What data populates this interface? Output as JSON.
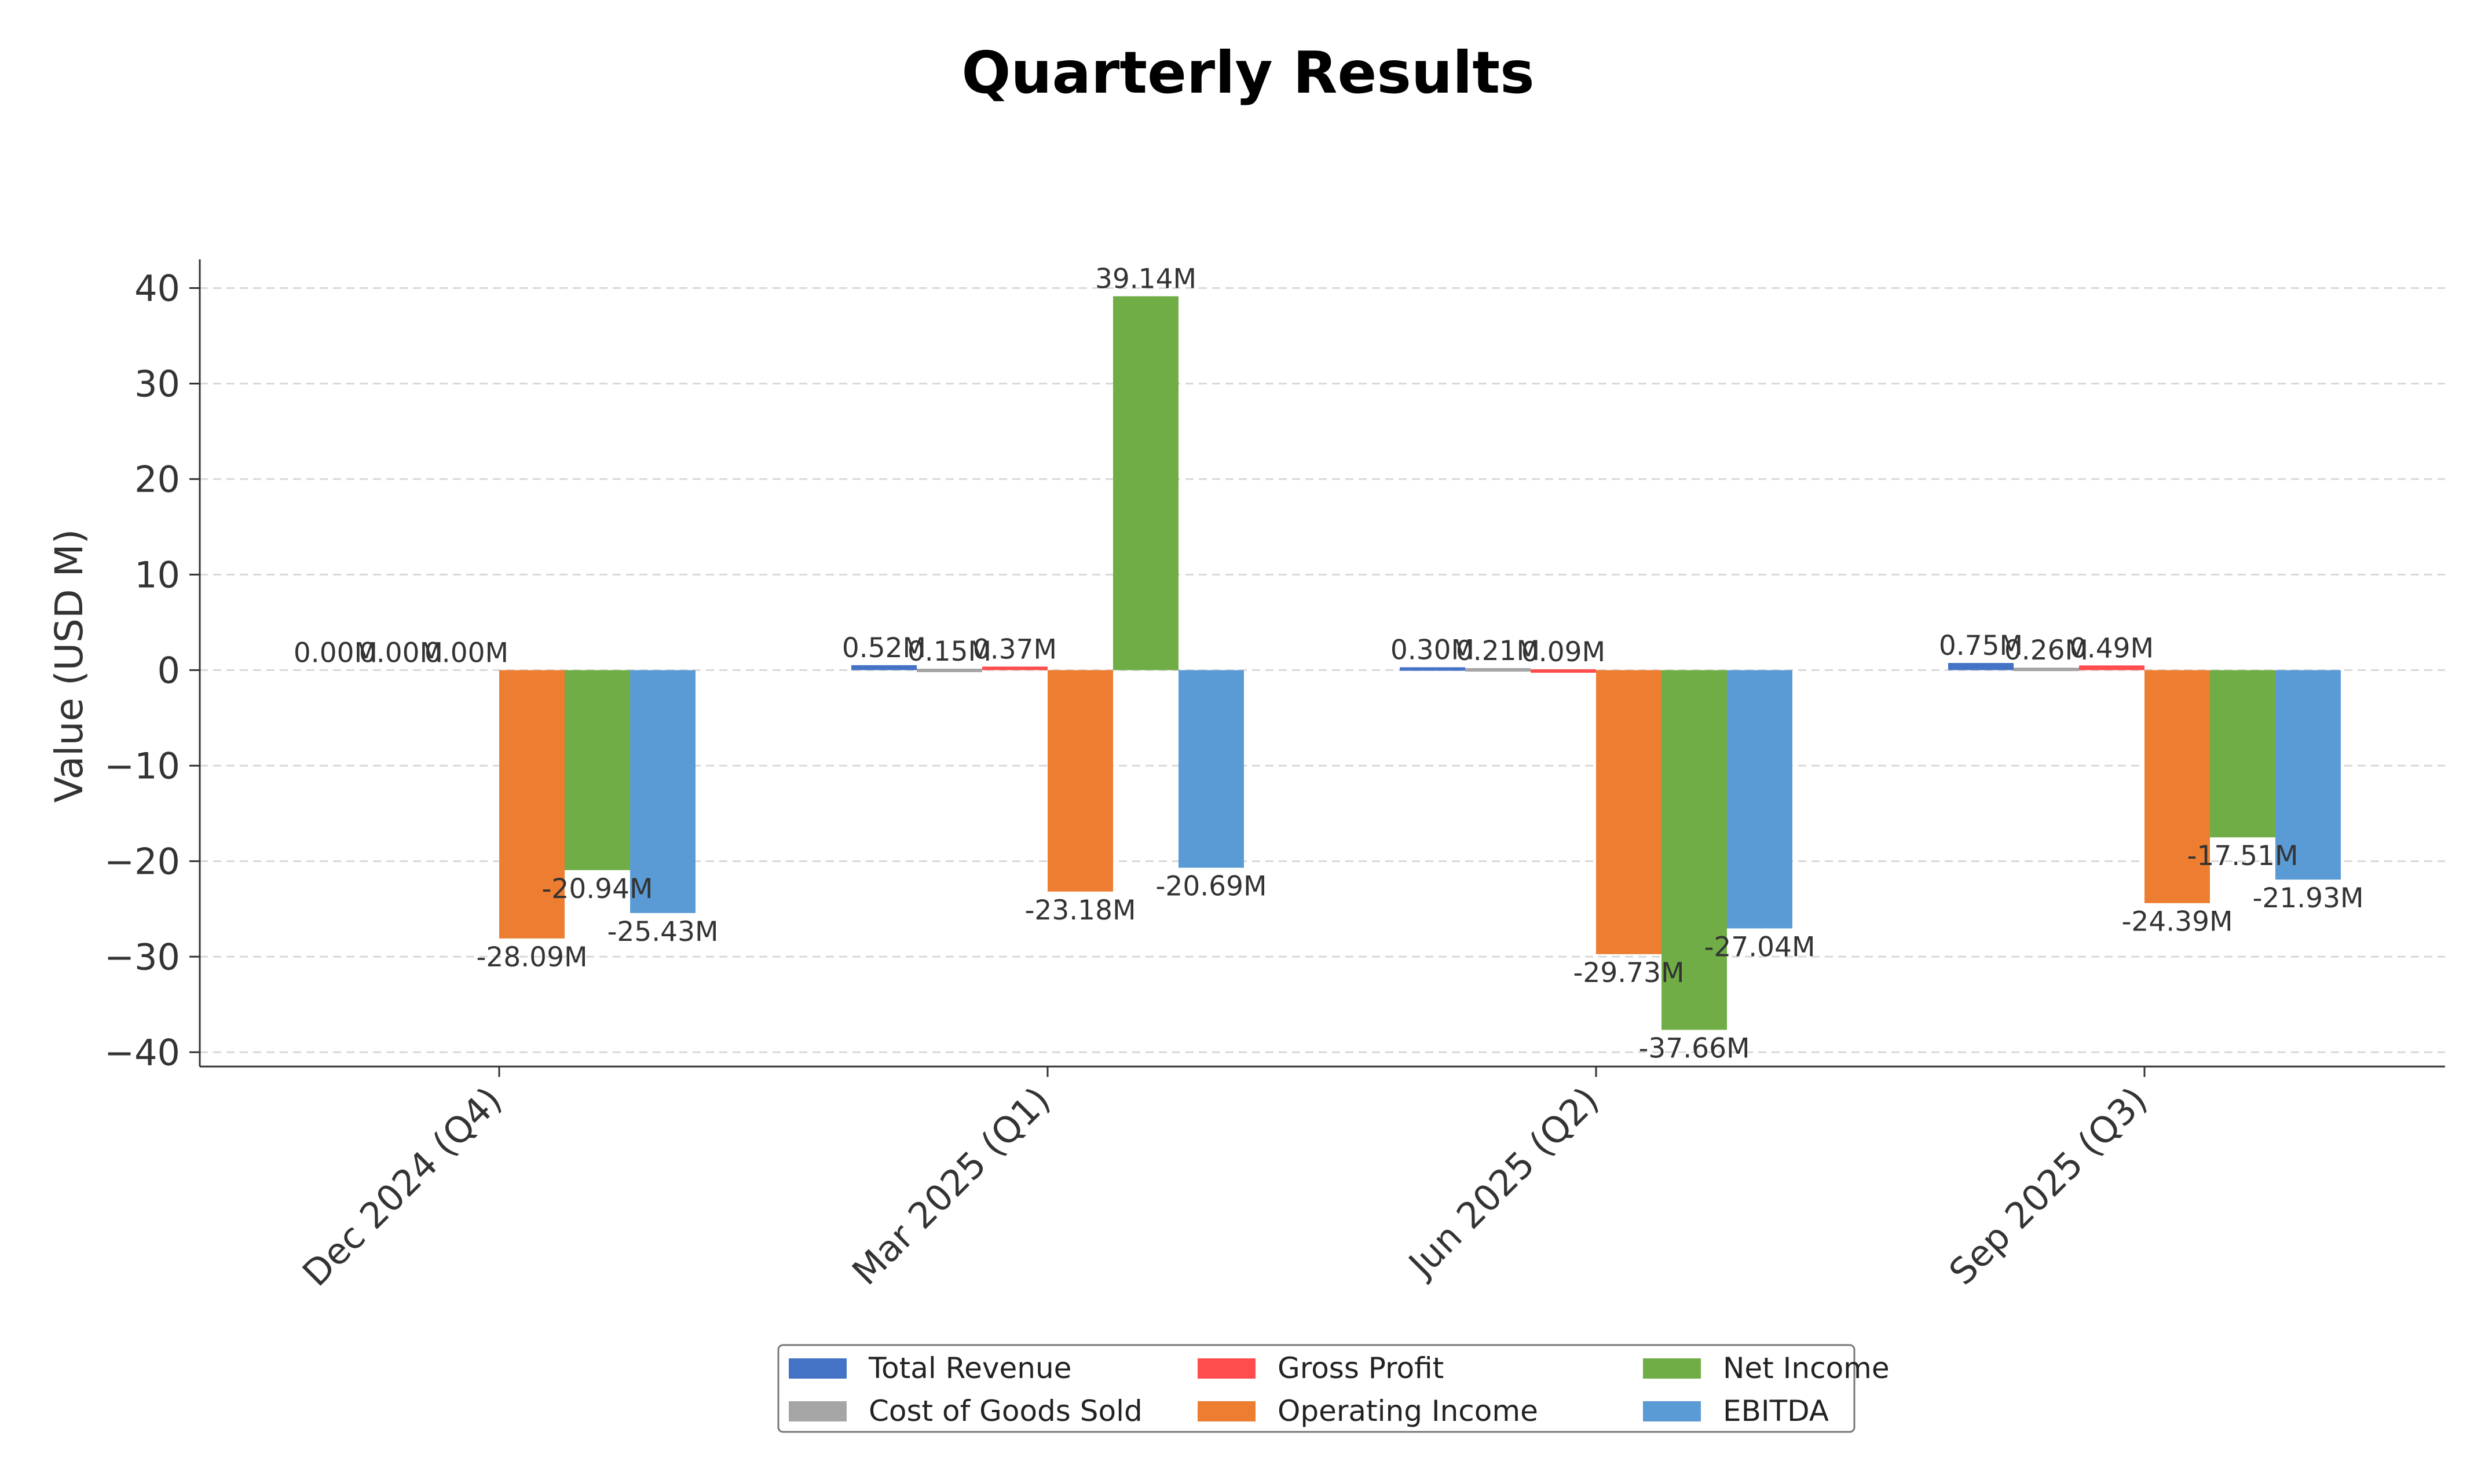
{
  "chart_data": {
    "type": "bar",
    "title": "Quarterly Results",
    "ylabel": "Value (USD M)",
    "xlabel": "",
    "ylim": [
      -41.5,
      43
    ],
    "yticks": [
      40,
      30,
      20,
      10,
      0,
      -10,
      -20,
      -30,
      -40
    ],
    "ytick_labels": [
      "40",
      "30",
      "20",
      "10",
      "0",
      "−10",
      "−20",
      "−30",
      "−40"
    ],
    "grid": "y-dashed",
    "legend_position": "bottom-center",
    "categories": [
      "Dec 2024 (Q4)",
      "Mar 2025 (Q1)",
      "Jun 2025 (Q2)",
      "Sep 2025 (Q3)"
    ],
    "series": [
      {
        "name": "Total Revenue",
        "color": "#4472c4",
        "values": [
          0.0,
          0.52,
          0.3,
          0.75
        ],
        "labels": [
          "0.00M",
          "0.52M",
          "0.30M",
          "0.75M"
        ]
      },
      {
        "name": "Cost of Goods Sold",
        "color": "#a5a5a5",
        "values": [
          0.0,
          0.15,
          0.21,
          0.26
        ],
        "labels": [
          "0.00M",
          "0.15M",
          "0.21M",
          "0.26M"
        ]
      },
      {
        "name": "Gross Profit",
        "color": "#ff4c4c",
        "values": [
          0.0,
          0.37,
          0.09,
          0.49
        ],
        "labels": [
          "0.00M",
          "0.37M",
          "0.09M",
          "0.49M"
        ]
      },
      {
        "name": "Operating Income",
        "color": "#ed7d31",
        "values": [
          -28.09,
          -23.18,
          -29.73,
          -24.39
        ],
        "labels": [
          "-28.09M",
          "-23.18M",
          "-29.73M",
          "-24.39M"
        ]
      },
      {
        "name": "Net Income",
        "color": "#70ad47",
        "values": [
          -20.94,
          39.14,
          -37.66,
          -17.51
        ],
        "labels": [
          "-20.94M",
          "39.14M",
          "-37.66M",
          "-17.51M"
        ]
      },
      {
        "name": "EBITDA",
        "color": "#5b9bd5",
        "values": [
          -25.43,
          -20.69,
          -27.04,
          -21.93
        ],
        "labels": [
          "-25.43M",
          "-20.69M",
          "-27.04M",
          "-21.93M"
        ]
      }
    ]
  }
}
